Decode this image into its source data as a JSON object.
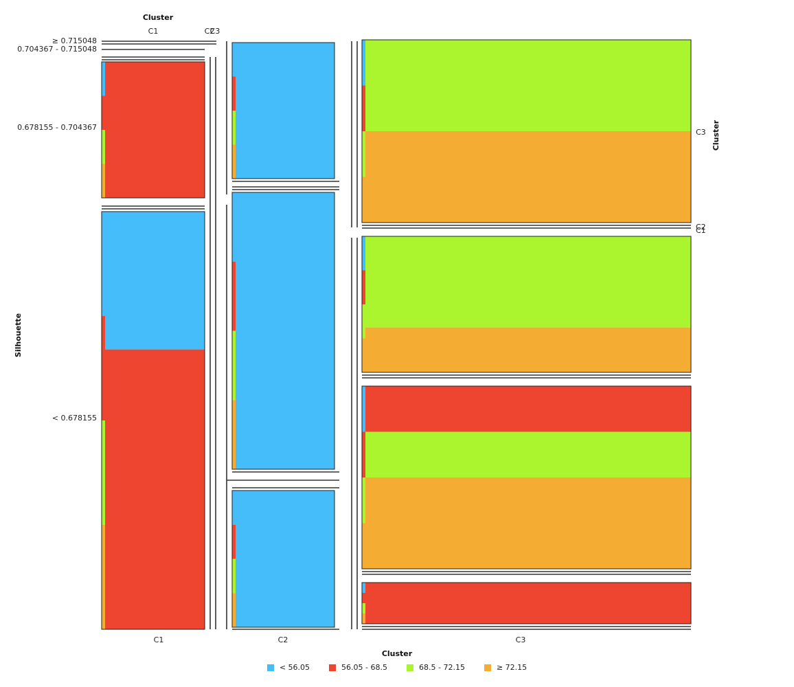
{
  "chart_data": {
    "type": "mosaic",
    "top_axis_title": "Cluster",
    "top_tick_labels": [
      "C1",
      "C2",
      "C3"
    ],
    "bottom_axis_title": "Cluster",
    "left_axis_title": "Silhouette",
    "right_axis_title": "Cluster",
    "column_labels": [
      "C1",
      "C2",
      "C3"
    ],
    "row_labels": [
      "≥ 0.715048",
      "0.704367 - 0.715048",
      "0.678155 - 0.704367",
      "< 0.678155"
    ],
    "right_labels": [
      "C3",
      "C2",
      "C1"
    ],
    "legend": [
      {
        "label": "< 56.05",
        "color": "#45BDFA"
      },
      {
        "label": "56.05 - 68.5",
        "color": "#EE4530"
      },
      {
        "label": "68.5 - 72.15",
        "color": "#ABF52E"
      },
      {
        "label": "≥ 72.15",
        "color": "#F4AC32"
      }
    ],
    "cluster_weights": [
      0.3,
      0.3,
      0.4
    ]
  }
}
